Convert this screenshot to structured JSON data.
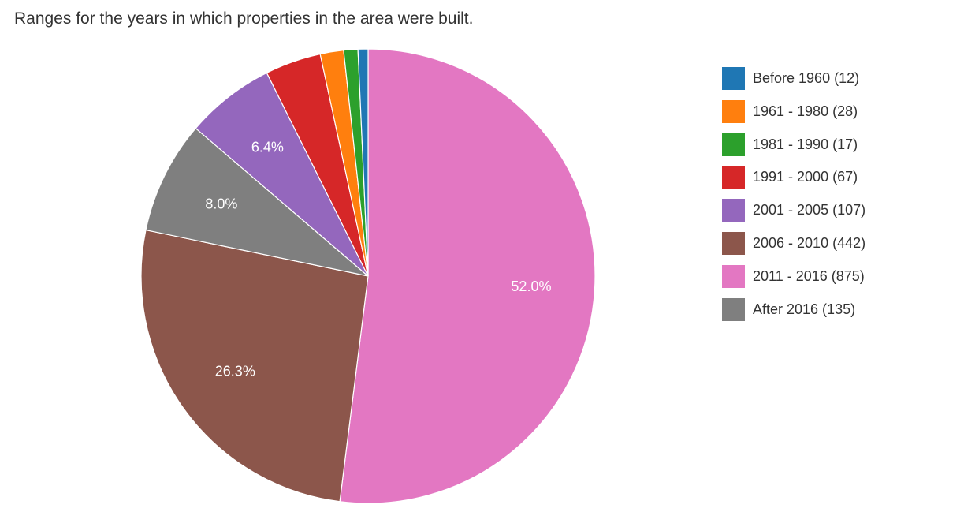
{
  "title": "Ranges for the years in which properties in the area were built.",
  "chart_data": {
    "type": "pie",
    "title": "Ranges for the years in which properties in the area were built.",
    "legend_position": "right",
    "slices": [
      {
        "label": "Before 1960",
        "value": 12,
        "legend": "Before 1960 (12)",
        "color": "#1f77b4",
        "pct_label": ""
      },
      {
        "label": "1961 - 1980",
        "value": 28,
        "legend": "1961 - 1980 (28)",
        "color": "#ff7f0e",
        "pct_label": ""
      },
      {
        "label": "1981 - 1990",
        "value": 17,
        "legend": "1981 - 1990 (17)",
        "color": "#2ca02c",
        "pct_label": ""
      },
      {
        "label": "1991 - 2000",
        "value": 67,
        "legend": "1991 - 2000 (67)",
        "color": "#d62728",
        "pct_label": ""
      },
      {
        "label": "2001 - 2005",
        "value": 107,
        "legend": "2001 - 2005 (107)",
        "color": "#9467bd",
        "pct_label": "6.4%"
      },
      {
        "label": "2006 - 2010",
        "value": 442,
        "legend": "2006 - 2010 (442)",
        "color": "#8c564b",
        "pct_label": "26.3%"
      },
      {
        "label": "2011 - 2016",
        "value": 875,
        "legend": "2011 - 2016 (875)",
        "color": "#e377c2",
        "pct_label": "52.0%"
      },
      {
        "label": "After 2016",
        "value": 135,
        "legend": "After 2016 (135)",
        "color": "#7f7f7f",
        "pct_label": "8.0%"
      }
    ],
    "draw_order": [
      "2011 - 2016",
      "2006 - 2010",
      "After 2016",
      "2001 - 2005",
      "1991 - 2000",
      "1961 - 1980",
      "1981 - 1990",
      "Before 1960"
    ]
  }
}
